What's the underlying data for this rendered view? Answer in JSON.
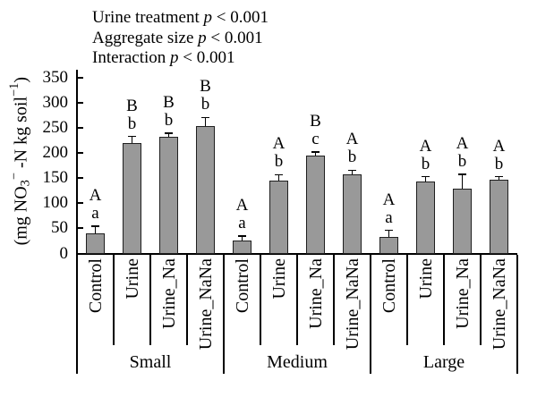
{
  "chart_data": {
    "type": "bar",
    "title": "",
    "ylabel": "(mg NO₃⁻ -N kg soil⁻¹)",
    "ylabel_parts": {
      "open": "(mg NO",
      "sub": "3",
      "sup": "−",
      "mid": " -N kg soil",
      "sup2": "−1",
      "close": ")"
    },
    "xlabel": "",
    "ylim": [
      0,
      350
    ],
    "yticks": [
      0,
      50,
      100,
      150,
      200,
      250,
      300,
      350
    ],
    "grid": false,
    "legend": "none",
    "groups": [
      "Small",
      "Medium",
      "Large"
    ],
    "categories": [
      "Control",
      "Urine",
      "Urine_Na",
      "Urine_NaNa"
    ],
    "series": [
      {
        "group": "Small",
        "values": [
          40,
          220,
          232,
          253
        ],
        "errors": [
          14,
          13,
          8,
          18
        ],
        "letters": [
          [
            "A",
            "a"
          ],
          [
            "B",
            "b"
          ],
          [
            "B",
            "b"
          ],
          [
            "B",
            "b"
          ]
        ]
      },
      {
        "group": "Medium",
        "values": [
          25,
          145,
          195,
          158
        ],
        "errors": [
          10,
          12,
          7,
          8
        ],
        "letters": [
          [
            "A",
            "a"
          ],
          [
            "A",
            "b"
          ],
          [
            "B",
            "c"
          ],
          [
            "A",
            "b"
          ]
        ]
      },
      {
        "group": "Large",
        "values": [
          33,
          143,
          130,
          147
        ],
        "errors": [
          13,
          10,
          28,
          6
        ],
        "letters": [
          [
            "A",
            "a"
          ],
          [
            "A",
            "b"
          ],
          [
            "A",
            "b"
          ],
          [
            "A",
            "b"
          ]
        ]
      }
    ],
    "significance": [
      {
        "prefix": "Urine treatment ",
        "symbol": "p",
        "rest": " < 0.001"
      },
      {
        "prefix": "Aggregate size ",
        "symbol": "p",
        "rest": " < 0.001"
      },
      {
        "prefix": "Interaction ",
        "symbol": "p",
        "rest": " < 0.001"
      }
    ],
    "colors": {
      "bar_fill": "#999999",
      "bar_edge": "#1f1f1f",
      "axis": "#000000",
      "text": "#000000"
    }
  }
}
